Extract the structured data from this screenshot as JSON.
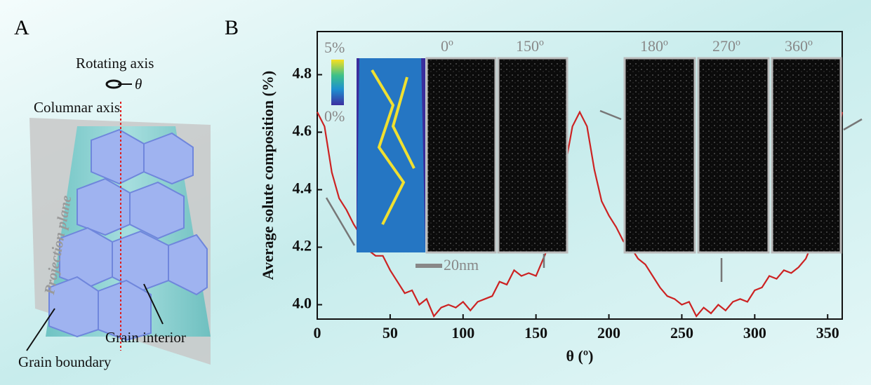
{
  "panel_a": {
    "label": "A",
    "rotating_axis": "Rotating axis",
    "theta": "θ",
    "columnar_axis": "Columnar axis",
    "projection_plane": "Projection plane",
    "grain_interior": "Grain interior",
    "grain_boundary": "Grain boundary"
  },
  "panel_b": {
    "label": "B",
    "colorbar_max": "5%",
    "colorbar_min": "0%",
    "scale_bar": "20nm",
    "insets": [
      "0º",
      "150º",
      "180º",
      "270º",
      "360º"
    ]
  },
  "chart_data": {
    "type": "line",
    "xlabel": "θ (º)",
    "ylabel": "Average solute composition (%)",
    "x": [
      0,
      5,
      10,
      15,
      20,
      25,
      30,
      35,
      40,
      45,
      50,
      55,
      60,
      65,
      70,
      75,
      80,
      85,
      90,
      95,
      100,
      105,
      110,
      115,
      120,
      125,
      130,
      135,
      140,
      145,
      150,
      155,
      160,
      165,
      170,
      175,
      180,
      185,
      190,
      195,
      200,
      205,
      210,
      215,
      220,
      225,
      230,
      235,
      240,
      245,
      250,
      255,
      260,
      265,
      270,
      275,
      280,
      285,
      290,
      295,
      300,
      305,
      310,
      315,
      320,
      325,
      330,
      335,
      340,
      345,
      350,
      355,
      360
    ],
    "series": [
      {
        "name": "Average solute composition",
        "color": "#cc2222",
        "values": [
          4.67,
          4.62,
          4.46,
          4.37,
          4.33,
          4.28,
          4.24,
          4.19,
          4.17,
          4.17,
          4.12,
          4.08,
          4.04,
          4.05,
          4.0,
          4.02,
          3.96,
          3.99,
          4.0,
          3.99,
          4.01,
          3.98,
          4.01,
          4.02,
          4.03,
          4.08,
          4.07,
          4.12,
          4.1,
          4.11,
          4.1,
          4.16,
          4.22,
          4.33,
          4.48,
          4.62,
          4.67,
          4.62,
          4.47,
          4.36,
          4.31,
          4.27,
          4.22,
          4.2,
          4.16,
          4.14,
          4.1,
          4.06,
          4.03,
          4.02,
          4.0,
          4.01,
          3.96,
          3.99,
          3.97,
          4.0,
          3.98,
          4.01,
          4.02,
          4.01,
          4.05,
          4.06,
          4.1,
          4.09,
          4.12,
          4.11,
          4.13,
          4.16,
          4.22,
          4.3,
          4.4,
          4.55,
          4.67
        ]
      }
    ],
    "xlim": [
      0,
      360
    ],
    "xticks": [
      0,
      50,
      100,
      150,
      200,
      250,
      300,
      350
    ],
    "ylim": [
      3.95,
      4.95
    ],
    "yticks": [
      {
        "value": 4,
        "label": "4.0"
      },
      4.2,
      4.4,
      4.6,
      4.8
    ]
  }
}
